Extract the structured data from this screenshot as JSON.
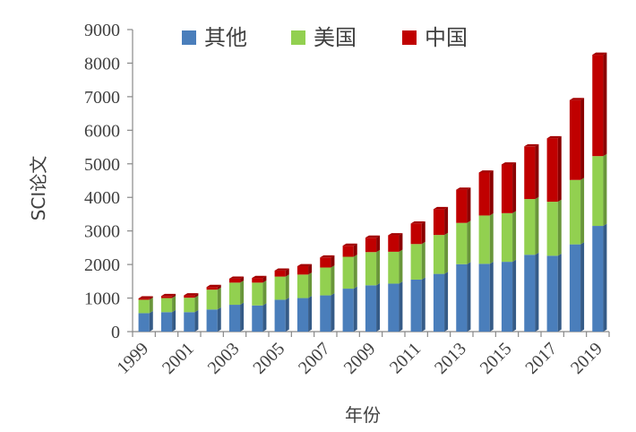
{
  "chart_data": {
    "type": "bar",
    "stacked": true,
    "title": "",
    "xlabel": "年份",
    "ylabel": "SCI论文",
    "ylim": [
      0,
      9000
    ],
    "yticks": [
      0,
      1000,
      2000,
      3000,
      4000,
      5000,
      6000,
      7000,
      8000,
      9000
    ],
    "categories": [
      "1999",
      "2000",
      "2001",
      "2002",
      "2003",
      "2004",
      "2005",
      "2006",
      "2007",
      "2008",
      "2009",
      "2010",
      "2011",
      "2012",
      "2013",
      "2014",
      "2015",
      "2016",
      "2017",
      "2018",
      "2019"
    ],
    "xtick_labels": [
      "1999",
      "2001",
      "2003",
      "2005",
      "2007",
      "2009",
      "2011",
      "2013",
      "2015",
      "2017",
      "2019"
    ],
    "legend_position": "top",
    "grid": false,
    "series": [
      {
        "name": "其他",
        "color": "#4a7ebb",
        "values": [
          550,
          580,
          580,
          660,
          800,
          780,
          950,
          1000,
          1080,
          1280,
          1380,
          1430,
          1550,
          1720,
          2010,
          2020,
          2080,
          2290,
          2260,
          2600,
          3150
        ]
      },
      {
        "name": "美国",
        "color": "#92d050",
        "values": [
          400,
          420,
          430,
          590,
          660,
          680,
          690,
          700,
          830,
          950,
          990,
          950,
          1060,
          1160,
          1230,
          1440,
          1450,
          1660,
          1610,
          1920,
          2080
        ]
      },
      {
        "name": "中国",
        "color": "#c00000",
        "values": [
          40,
          60,
          70,
          80,
          120,
          140,
          180,
          250,
          300,
          330,
          430,
          490,
          610,
          770,
          990,
          1280,
          1450,
          1570,
          1890,
          2380,
          3020
        ]
      }
    ]
  }
}
